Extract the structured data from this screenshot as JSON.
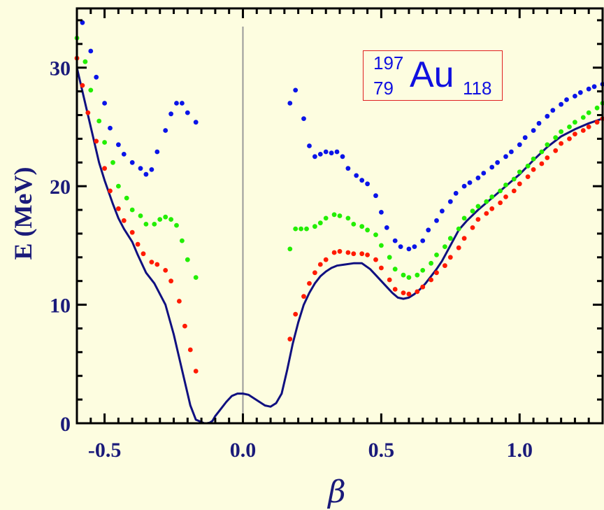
{
  "chart_data": {
    "type": "line",
    "title": "",
    "xlabel": "β",
    "ylabel": "E (MeV)",
    "xlim": [
      -0.6,
      1.3
    ],
    "ylim": [
      0,
      35
    ],
    "x_ticks": [
      {
        "value": -0.5,
        "label": "-0.5"
      },
      {
        "value": 0.0,
        "label": "0.0"
      },
      {
        "value": 0.5,
        "label": "0.5"
      },
      {
        "value": 1.0,
        "label": "1.0"
      }
    ],
    "y_ticks": [
      {
        "value": 0,
        "label": "0"
      },
      {
        "value": 10,
        "label": "10"
      },
      {
        "value": 20,
        "label": "20"
      },
      {
        "value": 30,
        "label": "30"
      }
    ],
    "colors": {
      "curve": "#101080",
      "red": "#ff1a00",
      "green": "#22ee00",
      "blue": "#0a14e8",
      "zero_line": "#999999",
      "background": "#fdfde0"
    },
    "annotation": {
      "mass_number": "197",
      "atomic_number": "79",
      "symbol": "Au",
      "neutron_number": "118"
    },
    "series": [
      {
        "style": "line",
        "color": "#101080",
        "x": [
          -0.6,
          -0.58,
          -0.55,
          -0.52,
          -0.5,
          -0.47,
          -0.45,
          -0.43,
          -0.4,
          -0.38,
          -0.35,
          -0.32,
          -0.28,
          -0.25,
          -0.22,
          -0.19,
          -0.17,
          -0.15,
          -0.14,
          -0.13,
          -0.12,
          -0.11,
          -0.1,
          -0.08,
          -0.06,
          -0.04,
          -0.02,
          0.0,
          0.02,
          0.04,
          0.06,
          0.08,
          0.1,
          0.12,
          0.14,
          0.16,
          0.18,
          0.2,
          0.22,
          0.24,
          0.26,
          0.28,
          0.3,
          0.32,
          0.34,
          0.37,
          0.4,
          0.43,
          0.46,
          0.48,
          0.5,
          0.52,
          0.54,
          0.56,
          0.58,
          0.6,
          0.62,
          0.64,
          0.66,
          0.68,
          0.7,
          0.72,
          0.75,
          0.78,
          0.81,
          0.85,
          0.9,
          0.95,
          1.0,
          1.05,
          1.1,
          1.15,
          1.2,
          1.25,
          1.3
        ],
        "y": [
          30.0,
          28.0,
          25.0,
          22.0,
          20.5,
          18.5,
          17.3,
          16.4,
          15.3,
          14.2,
          12.7,
          11.8,
          10.0,
          7.5,
          4.5,
          1.5,
          0.3,
          0.1,
          0.0,
          0.0,
          0.05,
          0.2,
          0.6,
          1.2,
          1.8,
          2.3,
          2.5,
          2.5,
          2.4,
          2.1,
          1.8,
          1.5,
          1.4,
          1.7,
          2.5,
          4.5,
          6.7,
          8.5,
          10.0,
          11.0,
          11.8,
          12.4,
          12.8,
          13.1,
          13.3,
          13.4,
          13.5,
          13.5,
          13.0,
          12.5,
          12.0,
          11.5,
          11.0,
          10.6,
          10.5,
          10.6,
          10.9,
          11.3,
          11.8,
          12.4,
          13.0,
          13.7,
          15.0,
          16.3,
          17.1,
          18.0,
          19.0,
          20.0,
          21.0,
          22.2,
          23.3,
          24.2,
          24.8,
          25.3,
          25.7
        ]
      },
      {
        "style": "dots",
        "color": "#ff1a00",
        "x": [
          -0.6,
          -0.58,
          -0.56,
          -0.53,
          -0.5,
          -0.48,
          -0.45,
          -0.43,
          -0.4,
          -0.38,
          -0.36,
          -0.33,
          -0.31,
          -0.28,
          -0.26,
          -0.23,
          -0.21,
          -0.19,
          -0.17,
          0.17,
          0.19,
          0.22,
          0.24,
          0.26,
          0.28,
          0.3,
          0.33,
          0.35,
          0.38,
          0.4,
          0.43,
          0.45,
          0.48,
          0.5,
          0.53,
          0.55,
          0.58,
          0.6,
          0.63,
          0.65,
          0.68,
          0.7,
          0.73,
          0.75,
          0.78,
          0.8,
          0.83,
          0.85,
          0.88,
          0.9,
          0.93,
          0.95,
          0.98,
          1.0,
          1.03,
          1.05,
          1.08,
          1.1,
          1.13,
          1.15,
          1.18,
          1.2,
          1.23,
          1.25,
          1.28,
          1.3
        ],
        "y": [
          30.8,
          28.5,
          26.2,
          23.8,
          21.5,
          19.6,
          18.1,
          17.1,
          16.1,
          15.1,
          14.3,
          13.6,
          13.4,
          12.9,
          12.0,
          10.3,
          8.2,
          6.2,
          4.4,
          7.1,
          9.2,
          10.7,
          11.8,
          12.7,
          13.4,
          13.8,
          14.4,
          14.5,
          14.4,
          14.3,
          14.3,
          14.2,
          13.8,
          13.1,
          12.1,
          11.3,
          11.0,
          10.9,
          11.1,
          11.5,
          12.1,
          12.7,
          13.3,
          14.0,
          14.8,
          15.6,
          16.5,
          17.2,
          17.7,
          18.1,
          18.6,
          19.1,
          19.6,
          20.2,
          20.8,
          21.4,
          21.9,
          22.4,
          23.0,
          23.6,
          24.0,
          24.4,
          24.7,
          25.0,
          25.4,
          25.7
        ]
      },
      {
        "style": "dots",
        "color": "#22ee00",
        "x": [
          -0.6,
          -0.57,
          -0.55,
          -0.52,
          -0.5,
          -0.47,
          -0.45,
          -0.42,
          -0.4,
          -0.37,
          -0.35,
          -0.32,
          -0.3,
          -0.28,
          -0.26,
          -0.24,
          -0.22,
          -0.2,
          -0.17,
          0.17,
          0.19,
          0.21,
          0.23,
          0.26,
          0.28,
          0.3,
          0.33,
          0.35,
          0.38,
          0.4,
          0.43,
          0.45,
          0.48,
          0.5,
          0.53,
          0.55,
          0.58,
          0.6,
          0.63,
          0.65,
          0.68,
          0.7,
          0.73,
          0.75,
          0.78,
          0.8,
          0.83,
          0.85,
          0.88,
          0.9,
          0.93,
          0.95,
          0.98,
          1.0,
          1.03,
          1.05,
          1.08,
          1.1,
          1.13,
          1.15,
          1.18,
          1.2,
          1.23,
          1.25,
          1.28,
          1.3
        ],
        "y": [
          32.5,
          30.5,
          28.1,
          25.5,
          23.7,
          22.0,
          20.0,
          19.0,
          18.0,
          17.5,
          16.8,
          16.8,
          17.2,
          17.4,
          17.2,
          16.7,
          15.4,
          13.8,
          12.3,
          14.7,
          16.4,
          16.4,
          16.4,
          16.6,
          16.9,
          17.3,
          17.6,
          17.5,
          17.3,
          16.8,
          16.6,
          16.3,
          15.9,
          15.0,
          14.0,
          13.0,
          12.5,
          12.3,
          12.5,
          12.9,
          13.5,
          14.2,
          14.9,
          15.6,
          16.4,
          17.3,
          17.9,
          18.3,
          18.7,
          19.1,
          19.6,
          20.1,
          20.6,
          21.2,
          21.7,
          22.3,
          22.9,
          23.5,
          24.1,
          24.6,
          25.0,
          25.4,
          25.8,
          26.2,
          26.6,
          27.0
        ]
      },
      {
        "style": "dots",
        "color": "#0a14e8",
        "x": [
          -0.58,
          -0.55,
          -0.53,
          -0.5,
          -0.48,
          -0.45,
          -0.43,
          -0.4,
          -0.37,
          -0.35,
          -0.33,
          -0.31,
          -0.28,
          -0.26,
          -0.24,
          -0.22,
          -0.2,
          -0.17,
          0.17,
          0.19,
          0.22,
          0.24,
          0.26,
          0.28,
          0.3,
          0.32,
          0.34,
          0.36,
          0.38,
          0.41,
          0.43,
          0.45,
          0.48,
          0.5,
          0.52,
          0.55,
          0.57,
          0.6,
          0.62,
          0.65,
          0.67,
          0.7,
          0.72,
          0.75,
          0.77,
          0.8,
          0.82,
          0.85,
          0.87,
          0.9,
          0.92,
          0.95,
          0.97,
          1.0,
          1.02,
          1.05,
          1.07,
          1.1,
          1.12,
          1.15,
          1.17,
          1.2,
          1.22,
          1.25,
          1.27,
          1.3
        ],
        "y": [
          33.8,
          31.4,
          29.2,
          27.0,
          24.9,
          23.5,
          22.7,
          22.0,
          21.5,
          21.0,
          21.4,
          22.9,
          24.7,
          26.1,
          27.0,
          27.0,
          26.2,
          25.4,
          27.0,
          28.1,
          25.7,
          23.4,
          22.5,
          22.7,
          22.9,
          22.8,
          22.9,
          22.5,
          21.5,
          20.9,
          20.5,
          20.2,
          19.2,
          17.8,
          16.5,
          15.4,
          14.9,
          14.7,
          14.9,
          15.4,
          16.3,
          17.1,
          17.9,
          18.7,
          19.4,
          20.0,
          20.3,
          20.7,
          21.1,
          21.6,
          22.0,
          22.5,
          22.9,
          23.5,
          24.1,
          24.7,
          25.3,
          25.9,
          26.4,
          26.9,
          27.3,
          27.6,
          27.9,
          28.2,
          28.4,
          28.6
        ]
      }
    ]
  }
}
